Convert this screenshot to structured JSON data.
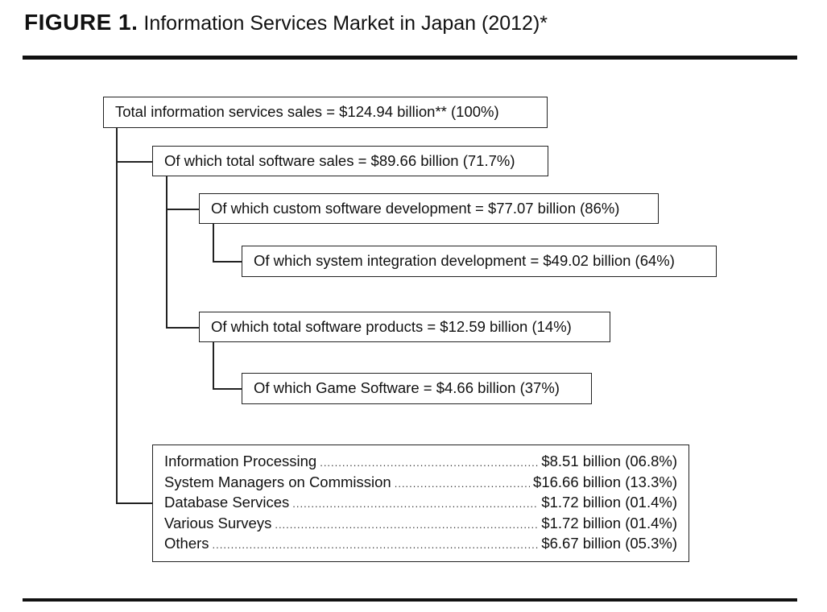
{
  "header": {
    "figure_label": "FIGURE 1.",
    "figure_title": "Information Services Market in Japan (2012)*"
  },
  "tree": {
    "root": "Total information services sales = $124.94 billion** (100%)",
    "software_sales": "Of which total software sales = $89.66 billion (71.7%)",
    "custom_software": "Of which custom software development = $77.07 billion (86%)",
    "system_integration": "Of which system integration development = $49.02 billion (64%)",
    "software_products": "Of which total software products = $12.59 billion (14%)",
    "game_software": "Of which Game Software = $4.66 billion (37%)"
  },
  "other_services": [
    {
      "name": "Information Processing",
      "value": "$8.51 billion (06.8%)"
    },
    {
      "name": "System Managers on Commission",
      "value": "$16.66 billion (13.3%)"
    },
    {
      "name": "Database Services",
      "value": "$1.72 billion (01.4%)"
    },
    {
      "name": "Various Surveys",
      "value": "$1.72 billion (01.4%)"
    },
    {
      "name": "Others",
      "value": "$6.67 billion (05.3%)"
    }
  ]
}
